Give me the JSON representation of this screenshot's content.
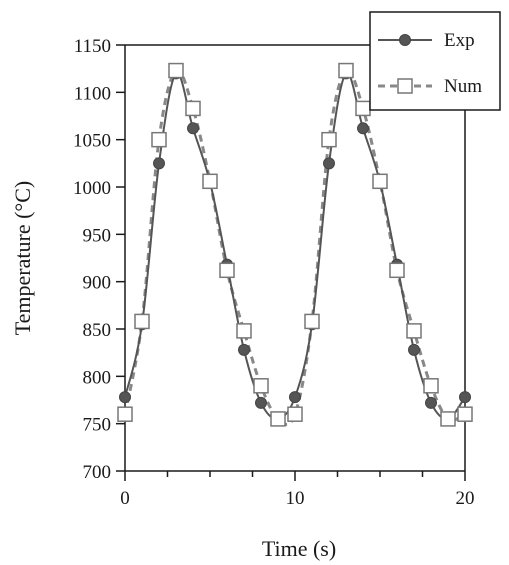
{
  "chart_data": {
    "type": "line",
    "xlabel": "Time (s)",
    "ylabel": "Temperature (°C)",
    "xlim": [
      0,
      20
    ],
    "ylim": [
      700,
      1150
    ],
    "x_ticks": [
      "0",
      "10",
      "20"
    ],
    "y_ticks": [
      "700",
      "750",
      "800",
      "850",
      "900",
      "950",
      "1000",
      "1050",
      "1100",
      "1150"
    ],
    "grid": false,
    "legend_position": "top-right",
    "series": [
      {
        "name": "Exp",
        "style": "solid line with filled circles",
        "color": "#555555",
        "x": [
          0,
          1,
          2,
          3,
          4,
          5,
          6,
          7,
          8,
          9,
          10,
          11,
          12,
          13,
          14,
          15,
          16,
          17,
          18,
          19,
          20
        ],
        "values": [
          778,
          855,
          1025,
          1120,
          1062,
          1005,
          918,
          828,
          772,
          755,
          778,
          855,
          1025,
          1120,
          1062,
          1005,
          918,
          828,
          772,
          755,
          778
        ]
      },
      {
        "name": "Num",
        "style": "dashed line with open squares",
        "color": "#888888",
        "x": [
          0,
          1,
          2,
          3,
          4,
          5,
          6,
          7,
          8,
          9,
          10,
          11,
          12,
          13,
          14,
          15,
          16,
          17,
          18,
          19,
          20
        ],
        "values": [
          760,
          858,
          1050,
          1123,
          1083,
          1006,
          912,
          848,
          790,
          755,
          760,
          858,
          1050,
          1123,
          1083,
          1006,
          912,
          848,
          790,
          755,
          760
        ]
      }
    ]
  }
}
